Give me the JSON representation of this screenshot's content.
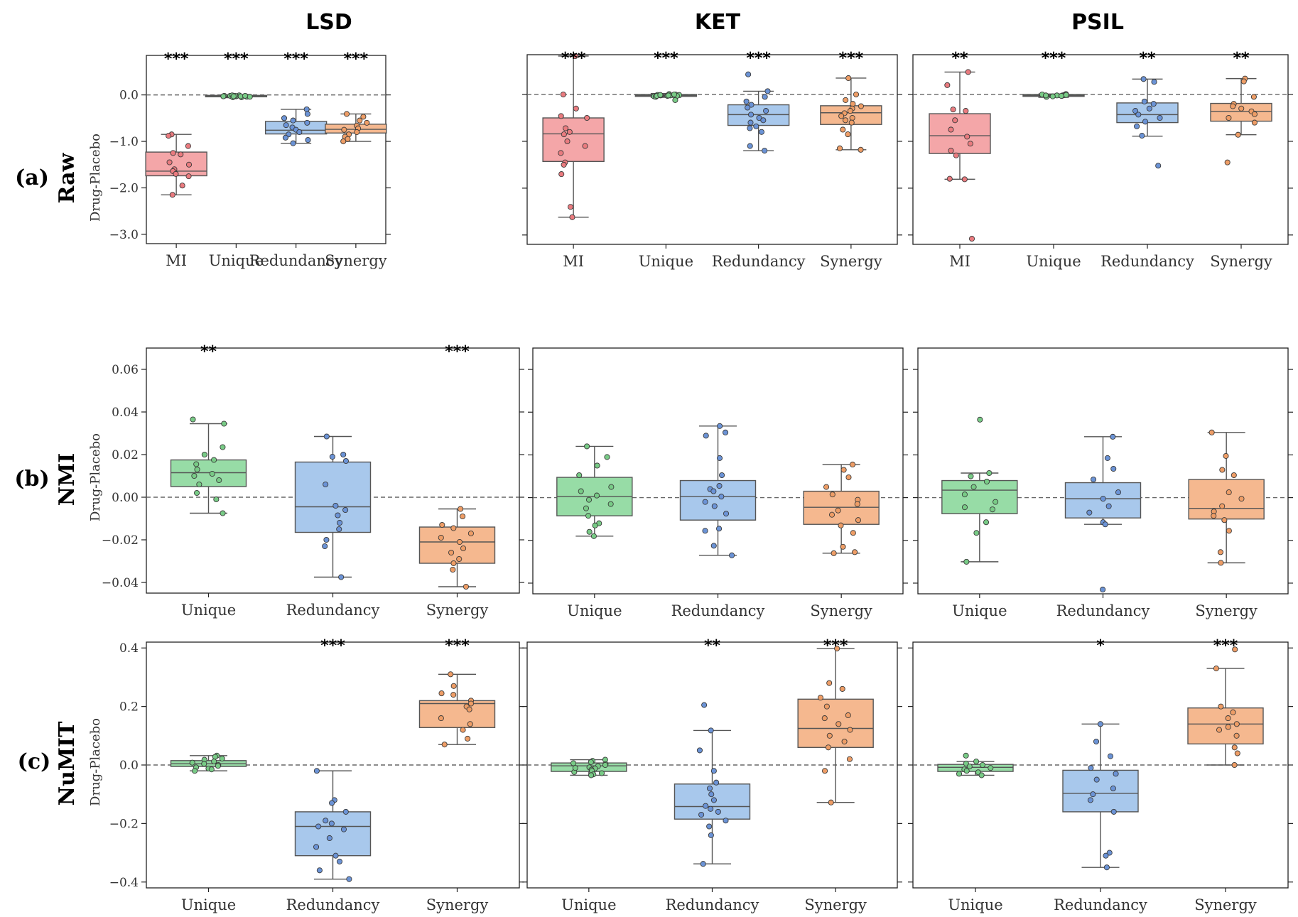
{
  "figure": {
    "col_titles": [
      "LSD",
      "KET",
      "PSIL"
    ],
    "row_tags": [
      "(a)",
      "(b)",
      "(c)"
    ],
    "row_names": [
      "Raw",
      "NMI",
      "NuMIT"
    ],
    "ylabel": "Drug-Placebo"
  },
  "colors": {
    "MI": {
      "fill": "#f4a6a8",
      "dot": "#ea7b7f"
    },
    "Unique": {
      "fill": "#97dca6",
      "dot": "#78cb86"
    },
    "Redundancy": {
      "fill": "#a8c8ec",
      "dot": "#6b93d6"
    },
    "Synergy": {
      "fill": "#f5b88f",
      "dot": "#ee9d66"
    },
    "edge": "#555555",
    "reference_line": "#666666"
  },
  "chart_data": [
    {
      "type": "box",
      "title": "LSD",
      "row": "Raw",
      "ylabel": "Drug-Placebo",
      "ylim": [
        -3.2,
        0.85
      ],
      "yticks": [
        0.0,
        -1.0,
        -2.0,
        -3.0
      ],
      "tick_labels": [
        "0.0",
        "−1.0",
        "−2.0",
        "−3.0"
      ],
      "categories": [
        "MI",
        "Unique",
        "Redundancy",
        "Synergy"
      ],
      "significance": [
        "***",
        "***",
        "***",
        "***"
      ],
      "boxes": [
        {
          "q1": -1.74,
          "median": -1.64,
          "q3": -1.23,
          "whisker_low": -2.15,
          "whisker_high": -0.85,
          "points": [
            -0.85,
            -0.88,
            -1.1,
            -1.25,
            -1.28,
            -1.45,
            -1.5,
            -1.6,
            -1.64,
            -1.7,
            -1.75,
            -1.95,
            -2.15
          ]
        },
        {
          "q1": -0.04,
          "median": -0.02,
          "q3": -0.01,
          "whisker_low": -0.06,
          "whisker_high": 0.0,
          "points": [
            -0.01,
            -0.02,
            -0.03,
            -0.04,
            -0.02,
            -0.05,
            -0.03,
            -0.02,
            -0.04,
            -0.01,
            -0.03,
            -0.02,
            -0.05,
            -0.03
          ]
        },
        {
          "q1": -0.84,
          "median": -0.76,
          "q3": -0.57,
          "whisker_low": -1.04,
          "whisker_high": -0.31,
          "points": [
            -0.31,
            -0.41,
            -0.5,
            -0.55,
            -0.6,
            -0.65,
            -0.7,
            -0.75,
            -0.8,
            -0.85,
            -0.92,
            -0.97,
            -1.04
          ]
        },
        {
          "q1": -0.82,
          "median": -0.74,
          "q3": -0.63,
          "whisker_low": -1.0,
          "whisker_high": -0.41,
          "points": [
            -0.41,
            -0.47,
            -0.55,
            -0.6,
            -0.66,
            -0.72,
            -0.75,
            -0.8,
            -0.85,
            -0.9,
            -0.95,
            -1.0
          ]
        }
      ]
    },
    {
      "type": "box",
      "title": "KET",
      "row": "Raw",
      "ylabel": "Drug-Placebo",
      "ylim": [
        -3.2,
        0.85
      ],
      "yticks": [
        0.0,
        -1.0,
        -2.0,
        -3.0
      ],
      "tick_labels": [
        "",
        "",
        "",
        ""
      ],
      "categories": [
        "MI",
        "Unique",
        "Redundancy",
        "Synergy"
      ],
      "significance": [
        "***",
        "***",
        "***",
        "***"
      ],
      "boxes": [
        {
          "q1": -1.43,
          "median": -0.84,
          "q3": -0.5,
          "whisker_low": -2.62,
          "whisker_high": 0.82,
          "points": [
            0.82,
            0.0,
            -0.3,
            -0.46,
            -0.5,
            -0.72,
            -0.8,
            -0.85,
            -1.0,
            -1.1,
            -1.25,
            -1.45,
            -1.5,
            -1.7,
            -2.4,
            -2.62
          ]
        },
        {
          "q1": -0.04,
          "median": -0.02,
          "q3": 0.0,
          "whisker_low": -0.06,
          "whisker_high": 0.02,
          "points": [
            0.0,
            -0.01,
            -0.02,
            -0.03,
            0.01,
            -0.02,
            -0.04,
            -0.01,
            -0.03,
            0.0,
            -0.05,
            -0.02,
            -0.03,
            -0.12,
            -0.01,
            -0.02
          ]
        },
        {
          "q1": -0.66,
          "median": -0.43,
          "q3": -0.22,
          "whisker_low": -1.2,
          "whisker_high": 0.07,
          "points": [
            0.43,
            0.07,
            -0.05,
            -0.15,
            -0.22,
            -0.28,
            -0.35,
            -0.43,
            -0.5,
            -0.55,
            -0.6,
            -0.68,
            -0.72,
            -0.8,
            -1.1,
            -1.2
          ]
        },
        {
          "q1": -0.64,
          "median": -0.39,
          "q3": -0.24,
          "whisker_low": -1.18,
          "whisker_high": 0.35,
          "points": [
            0.35,
            0.0,
            -0.12,
            -0.2,
            -0.25,
            -0.3,
            -0.35,
            -0.4,
            -0.46,
            -0.5,
            -0.55,
            -0.6,
            -0.75,
            -0.85,
            -1.15,
            -1.18
          ]
        }
      ]
    },
    {
      "type": "box",
      "title": "PSIL",
      "row": "Raw",
      "ylabel": "Drug-Placebo",
      "ylim": [
        -3.2,
        0.85
      ],
      "yticks": [
        0.0,
        -1.0,
        -2.0,
        -3.0
      ],
      "tick_labels": [
        "",
        "",
        "",
        ""
      ],
      "categories": [
        "MI",
        "Unique",
        "Redundancy",
        "Synergy"
      ],
      "significance": [
        "**",
        "***",
        "**",
        "**"
      ],
      "boxes": [
        {
          "q1": -1.26,
          "median": -0.88,
          "q3": -0.41,
          "whisker_low": -1.81,
          "whisker_high": 0.48,
          "points": [
            0.48,
            0.2,
            -0.32,
            -0.35,
            -0.55,
            -0.75,
            -0.9,
            -1.05,
            -1.2,
            -1.3,
            -1.8,
            -1.81,
            -3.08
          ]
        },
        {
          "q1": -0.04,
          "median": -0.02,
          "q3": 0.0,
          "whisker_low": -0.06,
          "whisker_high": 0.01,
          "points": [
            0.0,
            -0.01,
            -0.02,
            -0.03,
            0.01,
            -0.02,
            -0.04,
            -0.01,
            -0.03,
            -0.05,
            -0.02,
            -0.03,
            -0.01
          ]
        },
        {
          "q1": -0.6,
          "median": -0.43,
          "q3": -0.18,
          "whisker_low": -0.89,
          "whisker_high": 0.33,
          "points": [
            0.33,
            0.27,
            -0.15,
            -0.2,
            -0.3,
            -0.35,
            -0.43,
            -0.5,
            -0.58,
            -0.68,
            -0.88,
            -1.52
          ]
        },
        {
          "q1": -0.57,
          "median": -0.36,
          "q3": -0.19,
          "whisker_low": -0.86,
          "whisker_high": 0.34,
          "points": [
            0.34,
            0.28,
            -0.05,
            -0.2,
            -0.25,
            -0.3,
            -0.36,
            -0.42,
            -0.5,
            -0.6,
            -0.86,
            -1.45
          ]
        }
      ]
    },
    {
      "type": "box",
      "title": "LSD",
      "row": "NMI",
      "ylabel": "Drug-Placebo",
      "ylim": [
        -0.045,
        0.07
      ],
      "yticks": [
        0.06,
        0.04,
        0.02,
        0.0,
        -0.02,
        -0.04
      ],
      "tick_labels": [
        "0.06",
        "0.04",
        "0.02",
        "0.00",
        "−0.02",
        "−0.04"
      ],
      "categories": [
        "Unique",
        "Redundancy",
        "Synergy"
      ],
      "significance": [
        "**",
        "",
        "***"
      ],
      "boxes": [
        {
          "q1": 0.005,
          "median": 0.0115,
          "q3": 0.0175,
          "whisker_low": -0.0075,
          "whisker_high": 0.0345,
          "points": [
            0.0365,
            0.0345,
            0.0235,
            0.02,
            0.0175,
            0.0155,
            0.013,
            0.011,
            0.01,
            0.008,
            0.006,
            0.002,
            -0.001,
            -0.0075
          ]
        },
        {
          "q1": -0.0165,
          "median": -0.0045,
          "q3": 0.0165,
          "whisker_low": -0.0375,
          "whisker_high": 0.0285,
          "points": [
            0.0285,
            0.02,
            0.019,
            0.017,
            0.006,
            -0.004,
            -0.006,
            -0.0085,
            -0.012,
            -0.015,
            -0.02,
            -0.023,
            -0.0375
          ]
        },
        {
          "q1": -0.031,
          "median": -0.021,
          "q3": -0.014,
          "whisker_low": -0.042,
          "whisker_high": -0.0055,
          "points": [
            -0.0055,
            -0.009,
            -0.013,
            -0.0145,
            -0.017,
            -0.019,
            -0.021,
            -0.024,
            -0.026,
            -0.029,
            -0.031,
            -0.034,
            -0.042
          ]
        }
      ]
    },
    {
      "type": "box",
      "title": "KET",
      "row": "NMI",
      "ylabel": "Drug-Placebo",
      "ylim": [
        -0.045,
        0.07
      ],
      "yticks": [
        0.06,
        0.04,
        0.02,
        0.0,
        -0.02,
        -0.04
      ],
      "tick_labels": [
        "",
        "",
        "",
        "",
        "",
        ""
      ],
      "categories": [
        "Unique",
        "Redundancy",
        "Synergy"
      ],
      "significance": [
        "",
        "",
        ""
      ],
      "boxes": [
        {
          "q1": -0.0085,
          "median": 0.0005,
          "q3": 0.0095,
          "whisker_low": -0.018,
          "whisker_high": 0.024,
          "points": [
            0.024,
            0.019,
            0.015,
            0.0105,
            0.005,
            0.003,
            0.001,
            -0.001,
            -0.003,
            -0.005,
            -0.0085,
            -0.012,
            -0.013,
            -0.016,
            -0.018
          ]
        },
        {
          "q1": -0.0105,
          "median": 0.0005,
          "q3": 0.008,
          "whisker_low": -0.027,
          "whisker_high": 0.0335,
          "points": [
            0.0335,
            0.0305,
            0.029,
            0.0185,
            0.0105,
            0.0055,
            0.004,
            0.003,
            0.0005,
            -0.002,
            -0.004,
            -0.0075,
            -0.0145,
            -0.0155,
            -0.0225,
            -0.027
          ]
        },
        {
          "q1": -0.0125,
          "median": -0.0045,
          "q3": 0.003,
          "whisker_low": -0.026,
          "whisker_high": 0.0155,
          "points": [
            0.0155,
            0.013,
            0.0095,
            0.005,
            0.0015,
            -0.001,
            -0.003,
            -0.006,
            -0.008,
            -0.0105,
            -0.013,
            -0.0165,
            -0.023,
            -0.0255,
            -0.026
          ]
        }
      ]
    },
    {
      "type": "box",
      "title": "PSIL",
      "row": "NMI",
      "ylabel": "Drug-Placebo",
      "ylim": [
        -0.045,
        0.07
      ],
      "yticks": [
        0.06,
        0.04,
        0.02,
        0.0,
        -0.02,
        -0.04
      ],
      "tick_labels": [
        "",
        "",
        "",
        "",
        "",
        ""
      ],
      "categories": [
        "Unique",
        "Redundancy",
        "Synergy"
      ],
      "significance": [
        "",
        "",
        ""
      ],
      "boxes": [
        {
          "q1": -0.0075,
          "median": 0.0035,
          "q3": 0.008,
          "whisker_low": -0.03,
          "whisker_high": 0.0115,
          "points": [
            0.0365,
            0.0115,
            0.01,
            0.0075,
            0.005,
            0.0015,
            -0.002,
            -0.0045,
            -0.0055,
            -0.0115,
            -0.0165,
            -0.03
          ]
        },
        {
          "q1": -0.0095,
          "median": -0.0005,
          "q3": 0.007,
          "whisker_low": -0.0125,
          "whisker_high": 0.0285,
          "points": [
            0.0285,
            0.0185,
            0.0135,
            0.0085,
            0.0025,
            -0.0005,
            -0.004,
            -0.007,
            -0.0115,
            -0.0125,
            -0.043
          ]
        },
        {
          "q1": -0.01,
          "median": -0.005,
          "q3": 0.0085,
          "whisker_low": -0.0305,
          "whisker_high": 0.0305,
          "points": [
            0.0305,
            0.0195,
            0.013,
            0.0105,
            0.0025,
            -0.0005,
            -0.004,
            -0.0065,
            -0.0085,
            -0.0105,
            -0.0155,
            -0.0255,
            -0.0305
          ]
        }
      ]
    },
    {
      "type": "box",
      "title": "LSD",
      "row": "NuMIT",
      "ylabel": "Drug-Placebo",
      "ylim": [
        -0.42,
        0.42
      ],
      "yticks": [
        0.4,
        0.2,
        0.0,
        -0.2,
        -0.4
      ],
      "tick_labels": [
        "0.4",
        "0.2",
        "0.0",
        "−0.2",
        "−0.4"
      ],
      "categories": [
        "Unique",
        "Redundancy",
        "Synergy"
      ],
      "significance": [
        "",
        "***",
        "***"
      ],
      "boxes": [
        {
          "q1": -0.005,
          "median": 0.004,
          "q3": 0.015,
          "whisker_low": -0.02,
          "whisker_high": 0.032,
          "points": [
            0.032,
            0.028,
            0.022,
            0.018,
            0.012,
            0.008,
            0.004,
            0.0,
            -0.003,
            -0.008,
            -0.012,
            -0.015,
            -0.02
          ]
        },
        {
          "q1": -0.31,
          "median": -0.21,
          "q3": -0.16,
          "whisker_low": -0.39,
          "whisker_high": -0.02,
          "points": [
            -0.02,
            -0.12,
            -0.13,
            -0.16,
            -0.19,
            -0.2,
            -0.21,
            -0.22,
            -0.25,
            -0.28,
            -0.31,
            -0.33,
            -0.36,
            -0.39
          ]
        },
        {
          "q1": 0.128,
          "median": 0.21,
          "q3": 0.22,
          "whisker_low": 0.07,
          "whisker_high": 0.31,
          "points": [
            0.31,
            0.27,
            0.245,
            0.24,
            0.22,
            0.21,
            0.2,
            0.19,
            0.16,
            0.14,
            0.12,
            0.09,
            0.07
          ]
        }
      ]
    },
    {
      "type": "box",
      "title": "KET",
      "row": "NuMIT",
      "ylabel": "Drug-Placebo",
      "ylim": [
        -0.42,
        0.42
      ],
      "yticks": [
        0.4,
        0.2,
        0.0,
        -0.2,
        -0.4
      ],
      "tick_labels": [
        "",
        "",
        "",
        "",
        ""
      ],
      "categories": [
        "Unique",
        "Redundancy",
        "Synergy"
      ],
      "significance": [
        "",
        "**",
        "***"
      ],
      "boxes": [
        {
          "q1": -0.022,
          "median": -0.003,
          "q3": 0.007,
          "whisker_low": -0.035,
          "whisker_high": 0.018,
          "points": [
            0.018,
            0.014,
            0.01,
            0.006,
            0.003,
            0.0,
            -0.004,
            -0.008,
            -0.012,
            -0.016,
            -0.02,
            -0.024,
            -0.028,
            -0.032,
            -0.035,
            -0.01
          ]
        },
        {
          "q1": -0.185,
          "median": -0.142,
          "q3": -0.065,
          "whisker_low": -0.338,
          "whisker_high": 0.118,
          "points": [
            0.205,
            0.118,
            0.05,
            -0.02,
            -0.06,
            -0.08,
            -0.1,
            -0.12,
            -0.14,
            -0.15,
            -0.16,
            -0.17,
            -0.19,
            -0.21,
            -0.24,
            -0.338
          ]
        },
        {
          "q1": 0.06,
          "median": 0.125,
          "q3": 0.225,
          "whisker_low": -0.128,
          "whisker_high": 0.398,
          "points": [
            0.398,
            0.28,
            0.26,
            0.23,
            0.2,
            0.17,
            0.16,
            0.14,
            0.12,
            0.1,
            0.08,
            0.06,
            0.02,
            -0.02,
            -0.128
          ]
        }
      ]
    },
    {
      "type": "box",
      "title": "PSIL",
      "row": "NuMIT",
      "ylabel": "Drug-Placebo",
      "ylim": [
        -0.42,
        0.42
      ],
      "yticks": [
        0.4,
        0.2,
        0.0,
        -0.2,
        -0.4
      ],
      "tick_labels": [
        "",
        "",
        "",
        "",
        ""
      ],
      "categories": [
        "Unique",
        "Redundancy",
        "Synergy"
      ],
      "significance": [
        "",
        "*",
        "***"
      ],
      "boxes": [
        {
          "q1": -0.022,
          "median": -0.008,
          "q3": 0.002,
          "whisker_low": -0.035,
          "whisker_high": 0.012,
          "points": [
            0.032,
            0.012,
            0.005,
            0.0,
            -0.005,
            -0.01,
            -0.015,
            -0.02,
            -0.025,
            -0.03,
            -0.035
          ]
        },
        {
          "q1": -0.16,
          "median": -0.097,
          "q3": -0.018,
          "whisker_low": -0.35,
          "whisker_high": 0.14,
          "points": [
            0.14,
            0.08,
            0.03,
            -0.01,
            -0.03,
            -0.05,
            -0.08,
            -0.1,
            -0.12,
            -0.16,
            -0.3,
            -0.31,
            -0.35
          ]
        },
        {
          "q1": 0.072,
          "median": 0.14,
          "q3": 0.195,
          "whisker_low": 0.0,
          "whisker_high": 0.33,
          "points": [
            0.395,
            0.33,
            0.2,
            0.18,
            0.16,
            0.14,
            0.13,
            0.12,
            0.1,
            0.06,
            0.04,
            0.0
          ]
        }
      ]
    }
  ]
}
